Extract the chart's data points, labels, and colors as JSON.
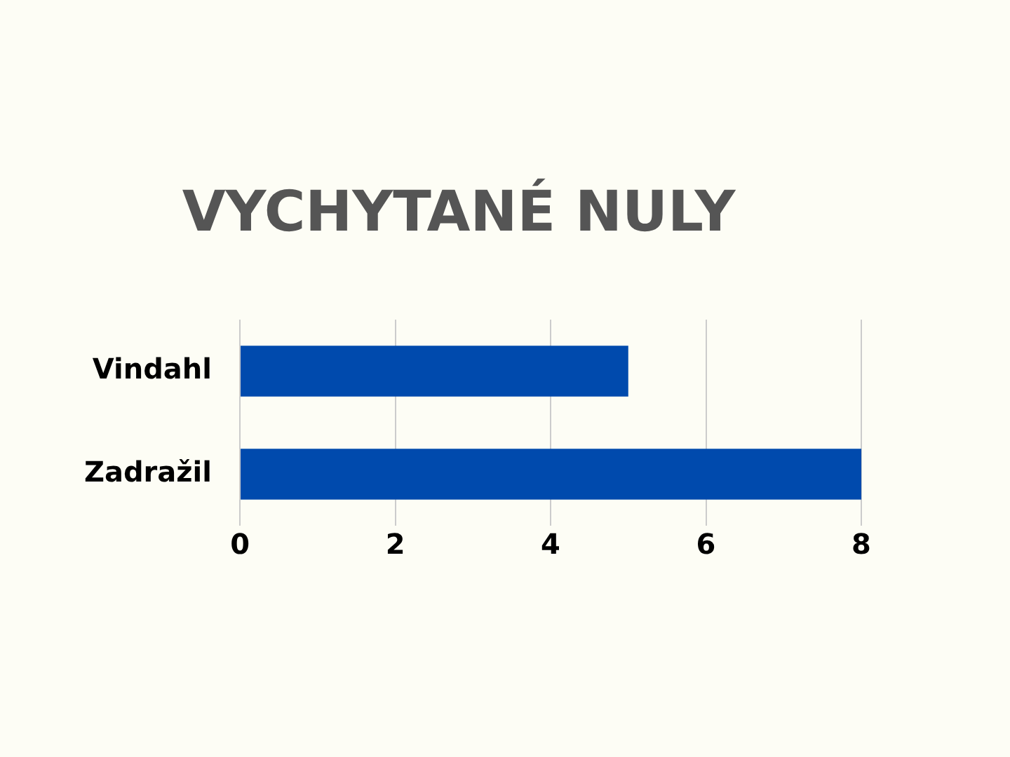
{
  "chart_data": {
    "type": "bar",
    "orientation": "horizontal",
    "title": "VYCHYTANÉ NULY",
    "categories": [
      "Vindahl",
      "Zadražil"
    ],
    "values": [
      5,
      8
    ],
    "color": "#004aad",
    "xlim": [
      0,
      8
    ],
    "xticks": [
      0,
      2,
      4,
      6,
      8
    ],
    "grid": "x",
    "legend": false
  }
}
